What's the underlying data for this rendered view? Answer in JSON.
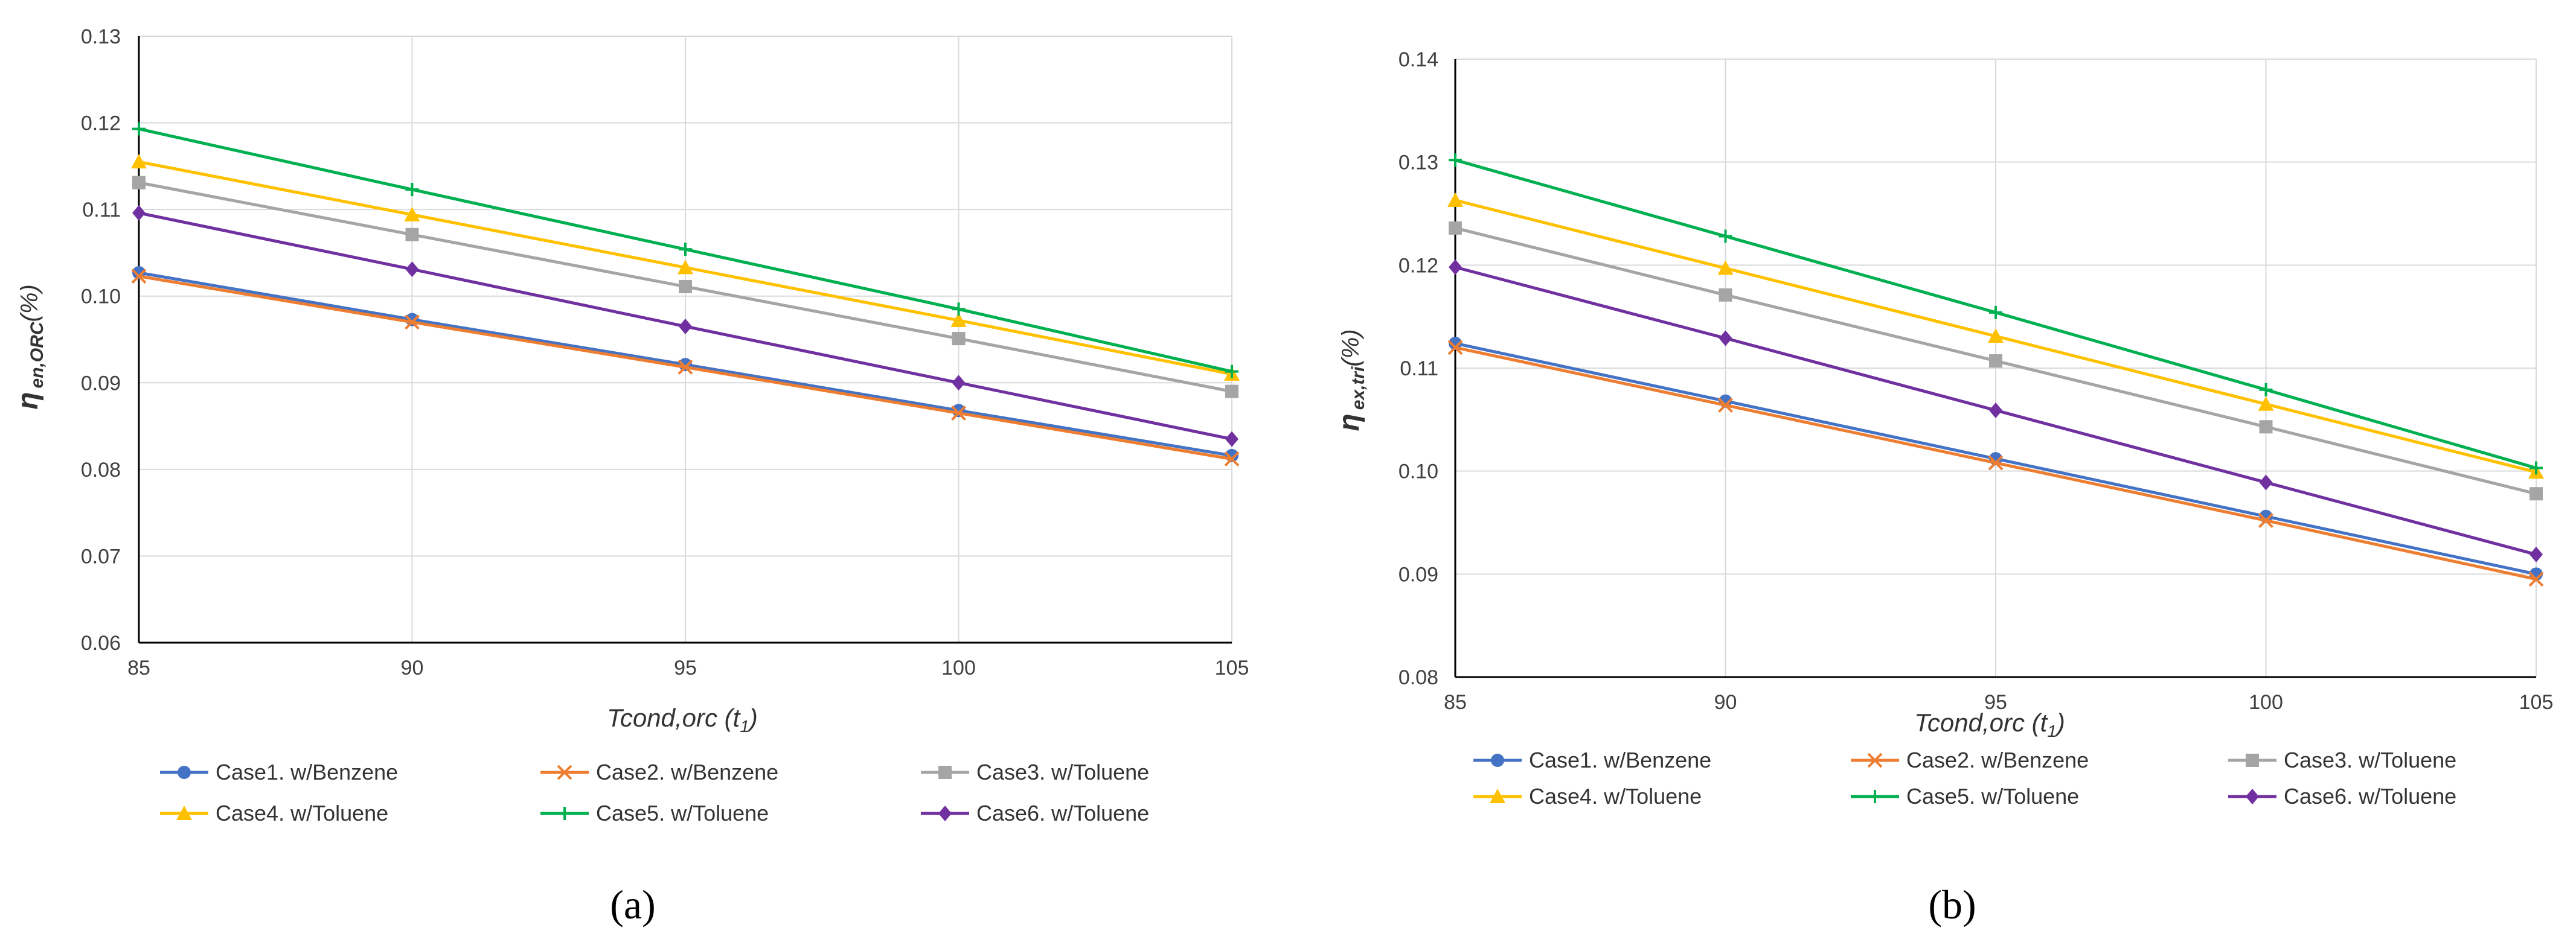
{
  "chart_data": [
    {
      "type": "line",
      "panel_label": "(a)",
      "xlabel": "Tcond,orc (t",
      "xlabel_sub": "1",
      "xlabel_end": ")",
      "ylabel": "η",
      "ylabel_sub": "en,ORC",
      "ylabel_end": "(%)",
      "x": [
        85,
        90,
        95,
        100,
        105
      ],
      "xticks": [
        "85",
        "90",
        "95",
        "100",
        "105"
      ],
      "ylim": [
        0.06,
        0.13
      ],
      "yticks": [
        "0.06",
        "0.07",
        "0.08",
        "0.09",
        "0.10",
        "0.11",
        "0.12",
        "0.13"
      ],
      "grid": true,
      "legend_position": "bottom",
      "series": [
        {
          "name": "Case1. w/Benzene",
          "color": "#4472C4",
          "marker": "circle",
          "values": [
            0.1027,
            0.0973,
            0.0921,
            0.0868,
            0.0816
          ]
        },
        {
          "name": "Case2. w/Benzene",
          "color": "#ED7D31",
          "marker": "x",
          "values": [
            0.1023,
            0.097,
            0.0918,
            0.0865,
            0.0812
          ]
        },
        {
          "name": "Case3. w/Toluene",
          "color": "#A5A5A5",
          "marker": "square",
          "values": [
            0.1131,
            0.1071,
            0.1011,
            0.0951,
            0.089
          ]
        },
        {
          "name": "Case4. w/Toluene",
          "color": "#FFC000",
          "marker": "triangle",
          "values": [
            0.1155,
            0.1094,
            0.1033,
            0.0972,
            0.091
          ]
        },
        {
          "name": "Case5. w/Toluene",
          "color": "#00B050",
          "marker": "plus",
          "values": [
            0.1193,
            0.1123,
            0.1054,
            0.0985,
            0.0913
          ]
        },
        {
          "name": "Case6. w/Toluene",
          "color": "#7030A0",
          "marker": "diamond",
          "values": [
            0.1096,
            0.1031,
            0.0965,
            0.09,
            0.0835
          ]
        }
      ]
    },
    {
      "type": "line",
      "panel_label": "(b)",
      "xlabel": "Tcond,orc (t",
      "xlabel_sub": "1",
      "xlabel_end": ")",
      "ylabel": "η",
      "ylabel_sub": "ex,tri",
      "ylabel_end": "(%)",
      "x": [
        85,
        90,
        95,
        100,
        105
      ],
      "xticks": [
        "85",
        "90",
        "95",
        "100",
        "105"
      ],
      "ylim": [
        0.08,
        0.14
      ],
      "yticks": [
        "0.08",
        "0.09",
        "0.10",
        "0.11",
        "0.12",
        "0.13",
        "0.14"
      ],
      "grid": true,
      "legend_position": "bottom",
      "series": [
        {
          "name": "Case1. w/Benzene",
          "color": "#4472C4",
          "marker": "circle",
          "values": [
            0.1124,
            0.1068,
            0.1012,
            0.0956,
            0.09
          ]
        },
        {
          "name": "Case2. w/Benzene",
          "color": "#ED7D31",
          "marker": "x",
          "values": [
            0.112,
            0.1064,
            0.1008,
            0.0952,
            0.0895
          ]
        },
        {
          "name": "Case3. w/Toluene",
          "color": "#A5A5A5",
          "marker": "square",
          "values": [
            0.1236,
            0.1171,
            0.1107,
            0.1043,
            0.0978
          ]
        },
        {
          "name": "Case4. w/Toluene",
          "color": "#FFC000",
          "marker": "triangle",
          "values": [
            0.1263,
            0.1197,
            0.1131,
            0.1065,
            0.0999
          ]
        },
        {
          "name": "Case5. w/Toluene",
          "color": "#00B050",
          "marker": "plus",
          "values": [
            0.1302,
            0.1228,
            0.1154,
            0.1079,
            0.1003
          ]
        },
        {
          "name": "Case6. w/Toluene",
          "color": "#7030A0",
          "marker": "diamond",
          "values": [
            0.1198,
            0.1129,
            0.1059,
            0.0989,
            0.0919
          ]
        }
      ]
    }
  ]
}
